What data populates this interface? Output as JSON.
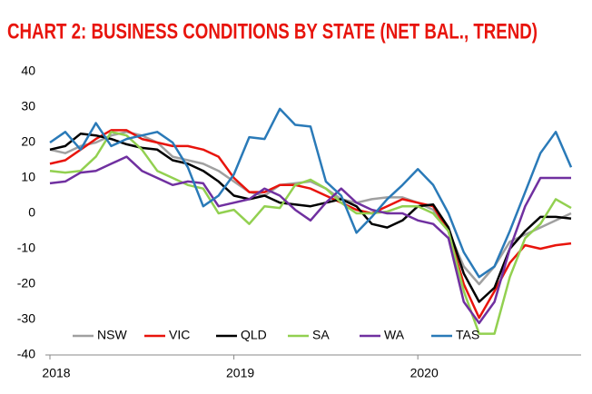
{
  "chart_data": {
    "type": "line",
    "title": "CHART 2: BUSINESS CONDITIONS BY STATE (NET BAL., TREND)",
    "categories": [
      "2018",
      null,
      null,
      null,
      null,
      null,
      null,
      null,
      null,
      null,
      null,
      null,
      "2019",
      null,
      null,
      null,
      null,
      null,
      null,
      null,
      null,
      null,
      null,
      null,
      "2020",
      null,
      null,
      null,
      null,
      null,
      null,
      null,
      null,
      null,
      null
    ],
    "ylim": [
      -40,
      40
    ],
    "yticks": [
      -40,
      -30,
      -20,
      -10,
      0,
      10,
      20,
      30,
      40
    ],
    "grid": false,
    "series": [
      {
        "name": "NSW",
        "color": "#a0a0a0",
        "values": [
          18,
          17,
          19,
          20,
          22,
          23,
          22,
          20,
          16,
          15,
          14,
          12,
          9,
          6,
          5,
          8,
          8.5,
          9,
          7,
          4,
          3,
          4,
          4.5,
          4.5,
          3,
          1,
          -5,
          -15,
          -20,
          -15,
          -8,
          -6,
          -4,
          -2,
          0
        ]
      },
      {
        "name": "VIC",
        "color": "#e8140c",
        "values": [
          14,
          15,
          18,
          21,
          23.5,
          23.5,
          21,
          20,
          19,
          19,
          18,
          16,
          10,
          6,
          6,
          8,
          8,
          7,
          5,
          3,
          1,
          0,
          2,
          4,
          3,
          2,
          -5,
          -20,
          -29.5,
          -22,
          -14,
          -9,
          -10,
          -9,
          -8.5
        ]
      },
      {
        "name": "QLD",
        "color": "#000000",
        "values": [
          18,
          19,
          22.5,
          22,
          21,
          19.5,
          18.5,
          18,
          15,
          14,
          12,
          9,
          5,
          4,
          5,
          3,
          2.5,
          2,
          3,
          4,
          2,
          -3,
          -4,
          -2,
          2,
          2.5,
          -4,
          -17,
          -25,
          -21,
          -10,
          -5,
          -1,
          -1,
          -1.5
        ]
      },
      {
        "name": "SA",
        "color": "#92d050",
        "values": [
          12,
          11.5,
          12,
          16,
          23,
          22,
          18,
          12,
          10,
          8,
          7,
          0,
          1,
          -3,
          2,
          1.5,
          8,
          9.5,
          7,
          3,
          0,
          0,
          0.5,
          2,
          2,
          0,
          -5,
          -22,
          -34,
          -34,
          -18,
          -7,
          -3,
          4,
          1.5
        ]
      },
      {
        "name": "WA",
        "color": "#7030a0",
        "values": [
          8.5,
          9,
          11.5,
          12,
          14,
          16,
          12,
          10,
          8,
          9,
          8.5,
          2,
          3,
          4,
          7,
          5,
          1,
          -2,
          3,
          7,
          3,
          1,
          0,
          0,
          -2,
          -3,
          -7,
          -25,
          -31,
          -25,
          -10,
          2,
          10,
          10,
          10
        ]
      },
      {
        "name": "TAS",
        "color": "#2a7ab8",
        "values": [
          20,
          23,
          18,
          25.5,
          19,
          21,
          22,
          23,
          20,
          13,
          2,
          5,
          11,
          21.5,
          21,
          29.5,
          25,
          24.5,
          9,
          5,
          -5.5,
          -1,
          4,
          8,
          12.5,
          8,
          0,
          -11,
          -18,
          -15,
          -5,
          6,
          17,
          23,
          13
        ]
      }
    ]
  }
}
